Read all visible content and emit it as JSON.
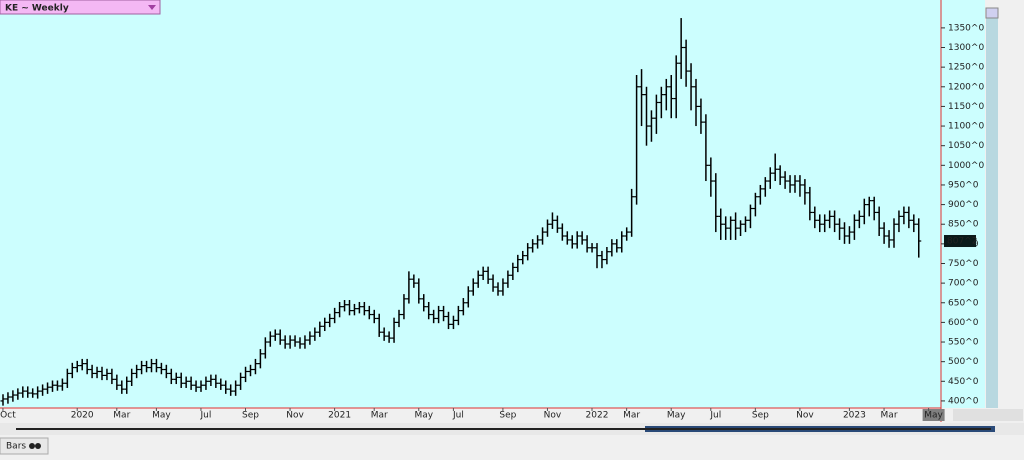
{
  "chart_data": {
    "type": "ohlc",
    "title": "KE ~ Weekly",
    "tab_label": "Bars",
    "last_value": 807.25,
    "last_value_label": "807^2",
    "color": "#000000",
    "background": "#ccfefe",
    "year_color": "#2255cc",
    "ylim": [
      382,
      1421
    ],
    "yticks": [
      {
        "value": 400,
        "label": "400^0"
      },
      {
        "value": 450,
        "label": "450^0"
      },
      {
        "value": 500,
        "label": "500^0"
      },
      {
        "value": 550,
        "label": "550^0"
      },
      {
        "value": 600,
        "label": "600^0"
      },
      {
        "value": 650,
        "label": "650^0"
      },
      {
        "value": 700,
        "label": "700^0"
      },
      {
        "value": 750,
        "label": "750^0"
      },
      {
        "value": 800,
        "label": "800^0"
      },
      {
        "value": 850,
        "label": "850^0"
      },
      {
        "value": 900,
        "label": "900^0"
      },
      {
        "value": 950,
        "label": "950^0"
      },
      {
        "value": 1000,
        "label": "1000^0"
      },
      {
        "value": 1050,
        "label": "1050^0"
      },
      {
        "value": 1100,
        "label": "1100^0"
      },
      {
        "value": 1150,
        "label": "1150^0"
      },
      {
        "value": 1200,
        "label": "1200^0"
      },
      {
        "value": 1250,
        "label": "1250^0"
      },
      {
        "value": 1300,
        "label": "1300^0"
      },
      {
        "value": 1350,
        "label": "1350^0"
      }
    ],
    "categories": [
      null,
      "Oct",
      null,
      null,
      null,
      null,
      null,
      null,
      null,
      null,
      null,
      null,
      null,
      null,
      null,
      null,
      "2020",
      null,
      null,
      null,
      null,
      null,
      null,
      null,
      "Mar",
      null,
      null,
      null,
      null,
      null,
      null,
      null,
      "May",
      null,
      null,
      null,
      null,
      null,
      null,
      null,
      null,
      "Jul",
      null,
      null,
      null,
      null,
      null,
      null,
      null,
      null,
      "Sep",
      null,
      null,
      null,
      null,
      null,
      null,
      null,
      null,
      "Nov",
      null,
      null,
      null,
      null,
      null,
      null,
      null,
      null,
      "2021",
      null,
      null,
      null,
      null,
      null,
      null,
      null,
      "Mar",
      null,
      null,
      null,
      null,
      null,
      null,
      null,
      null,
      "May",
      null,
      null,
      null,
      null,
      null,
      null,
      "Jul",
      null,
      null,
      null,
      null,
      null,
      null,
      null,
      null,
      null,
      "Sep",
      null,
      null,
      null,
      null,
      null,
      null,
      null,
      null,
      "Nov",
      null,
      null,
      null,
      null,
      null,
      null,
      null,
      null,
      "2022",
      null,
      null,
      null,
      null,
      null,
      null,
      "Mar",
      null,
      null,
      null,
      null,
      null,
      null,
      null,
      null,
      "May",
      null,
      null,
      null,
      null,
      null,
      null,
      null,
      "Jul",
      null,
      null,
      null,
      null,
      null,
      null,
      null,
      null,
      "Sep",
      null,
      null,
      null,
      null,
      null,
      null,
      null,
      null,
      "Nov",
      null,
      null,
      null,
      null,
      null,
      null,
      null,
      null,
      null,
      "2023",
      null,
      null,
      null,
      null,
      null,
      null,
      "Mar",
      null,
      null,
      null,
      null,
      null,
      null,
      null,
      null,
      "May"
    ],
    "open": [
      400,
      405,
      410,
      415,
      420,
      425,
      420,
      418,
      425,
      430,
      435,
      440,
      438,
      445,
      470,
      485,
      490,
      495,
      480,
      470,
      475,
      465,
      470,
      455,
      440,
      430,
      450,
      470,
      480,
      490,
      485,
      495,
      485,
      480,
      470,
      455,
      460,
      445,
      450,
      440,
      435,
      440,
      450,
      455,
      445,
      440,
      430,
      425,
      440,
      460,
      475,
      480,
      495,
      520,
      550,
      565,
      570,
      555,
      545,
      555,
      550,
      545,
      555,
      565,
      575,
      590,
      600,
      610,
      625,
      640,
      645,
      630,
      635,
      640,
      630,
      620,
      610,
      575,
      565,
      560,
      600,
      620,
      660,
      710,
      700,
      660,
      640,
      620,
      610,
      630,
      615,
      595,
      605,
      630,
      650,
      680,
      700,
      720,
      730,
      710,
      690,
      680,
      700,
      720,
      740,
      760,
      770,
      790,
      800,
      810,
      830,
      850,
      860,
      840,
      820,
      810,
      800,
      820,
      810,
      790,
      790,
      770,
      760,
      780,
      800,
      790,
      820,
      830,
      920,
      1200,
      1180,
      1100,
      1120,
      1160,
      1180,
      1200,
      1170,
      1260,
      1300,
      1240,
      1200,
      1150,
      1110,
      1000,
      960,
      870,
      850,
      840,
      860,
      840,
      850,
      860,
      890,
      920,
      940,
      960,
      980,
      990,
      970,
      960,
      950,
      960,
      950,
      930,
      880,
      860,
      850,
      860,
      870,
      850,
      840,
      820,
      830,
      860,
      870,
      900,
      910,
      880,
      840,
      820,
      810,
      850,
      870,
      880,
      860,
      850,
      null,
      null,
      null
    ],
    "high": [
      417,
      422,
      427,
      432,
      437,
      437,
      432,
      437,
      442,
      447,
      452,
      452,
      457,
      482,
      497,
      502,
      507,
      507,
      492,
      487,
      487,
      482,
      482,
      467,
      452,
      462,
      482,
      492,
      502,
      502,
      507,
      507,
      497,
      492,
      482,
      472,
      472,
      462,
      462,
      452,
      452,
      462,
      467,
      467,
      457,
      452,
      442,
      452,
      472,
      487,
      492,
      507,
      532,
      562,
      577,
      582,
      582,
      567,
      567,
      567,
      562,
      567,
      577,
      587,
      602,
      612,
      622,
      637,
      652,
      657,
      657,
      647,
      652,
      652,
      642,
      632,
      622,
      587,
      577,
      612,
      632,
      672,
      730,
      722,
      712,
      672,
      652,
      632,
      642,
      642,
      627,
      617,
      642,
      662,
      692,
      712,
      732,
      742,
      742,
      722,
      702,
      712,
      732,
      752,
      772,
      782,
      802,
      812,
      822,
      842,
      862,
      880,
      872,
      852,
      832,
      822,
      832,
      832,
      822,
      802,
      802,
      782,
      792,
      812,
      812,
      832,
      842,
      940,
      1230,
      1245,
      1200,
      1140,
      1180,
      1200,
      1220,
      1230,
      1280,
      1375,
      1320,
      1260,
      1220,
      1170,
      1130,
      1020,
      980,
      890,
      870,
      870,
      880,
      860,
      870,
      900,
      930,
      950,
      970,
      995,
      1030,
      1000,
      985,
      975,
      975,
      975,
      965,
      945,
      895,
      875,
      875,
      885,
      885,
      865,
      855,
      845,
      875,
      885,
      915,
      920,
      920,
      895,
      855,
      835,
      865,
      885,
      895,
      895,
      875,
      865,
      null,
      null,
      null
    ],
    "low": [
      388,
      393,
      398,
      403,
      408,
      408,
      408,
      406,
      413,
      418,
      423,
      426,
      426,
      433,
      458,
      473,
      478,
      468,
      458,
      458,
      453,
      453,
      443,
      428,
      418,
      418,
      438,
      458,
      468,
      473,
      473,
      473,
      468,
      458,
      443,
      443,
      433,
      433,
      428,
      423,
      423,
      428,
      438,
      433,
      428,
      418,
      413,
      413,
      428,
      448,
      463,
      468,
      483,
      508,
      538,
      553,
      543,
      533,
      533,
      538,
      533,
      533,
      543,
      553,
      563,
      578,
      588,
      598,
      613,
      628,
      618,
      618,
      623,
      618,
      608,
      598,
      563,
      553,
      548,
      548,
      588,
      608,
      648,
      688,
      648,
      628,
      608,
      598,
      598,
      603,
      583,
      583,
      593,
      618,
      638,
      668,
      688,
      708,
      698,
      678,
      668,
      668,
      688,
      708,
      728,
      748,
      758,
      778,
      788,
      798,
      818,
      838,
      828,
      808,
      798,
      788,
      788,
      798,
      778,
      778,
      738,
      738,
      748,
      768,
      778,
      778,
      808,
      818,
      900,
      1100,
      1050,
      1060,
      1080,
      1120,
      1140,
      1120,
      1120,
      1220,
      1200,
      1140,
      1100,
      1080,
      960,
      920,
      830,
      810,
      810,
      810,
      810,
      820,
      830,
      840,
      870,
      900,
      920,
      940,
      960,
      950,
      940,
      930,
      930,
      920,
      900,
      860,
      840,
      830,
      830,
      840,
      830,
      810,
      800,
      800,
      810,
      840,
      850,
      870,
      860,
      820,
      800,
      790,
      790,
      830,
      850,
      840,
      830,
      765,
      null,
      null,
      null
    ],
    "close": [
      405,
      410,
      415,
      420,
      425,
      420,
      418,
      425,
      430,
      435,
      440,
      438,
      445,
      470,
      485,
      490,
      495,
      480,
      470,
      475,
      465,
      470,
      455,
      440,
      430,
      450,
      470,
      480,
      490,
      485,
      495,
      485,
      480,
      470,
      455,
      460,
      445,
      450,
      440,
      435,
      440,
      450,
      455,
      445,
      440,
      430,
      425,
      440,
      460,
      475,
      480,
      495,
      520,
      550,
      565,
      570,
      555,
      545,
      555,
      550,
      545,
      555,
      565,
      575,
      590,
      600,
      610,
      625,
      640,
      645,
      630,
      635,
      640,
      630,
      620,
      610,
      575,
      565,
      560,
      600,
      620,
      660,
      710,
      700,
      660,
      640,
      620,
      610,
      630,
      615,
      595,
      605,
      630,
      650,
      680,
      700,
      720,
      730,
      710,
      690,
      680,
      700,
      720,
      740,
      760,
      770,
      790,
      800,
      810,
      830,
      850,
      860,
      840,
      820,
      810,
      800,
      820,
      810,
      790,
      790,
      770,
      760,
      780,
      800,
      790,
      820,
      830,
      920,
      1200,
      1180,
      1100,
      1120,
      1160,
      1180,
      1200,
      1170,
      1260,
      1300,
      1240,
      1200,
      1150,
      1110,
      1000,
      960,
      870,
      850,
      840,
      860,
      840,
      850,
      860,
      890,
      920,
      940,
      960,
      980,
      990,
      970,
      960,
      950,
      960,
      950,
      930,
      880,
      860,
      850,
      860,
      870,
      850,
      840,
      820,
      830,
      860,
      870,
      900,
      910,
      880,
      840,
      820,
      810,
      850,
      870,
      880,
      860,
      850,
      807.25,
      null,
      null,
      null
    ]
  }
}
